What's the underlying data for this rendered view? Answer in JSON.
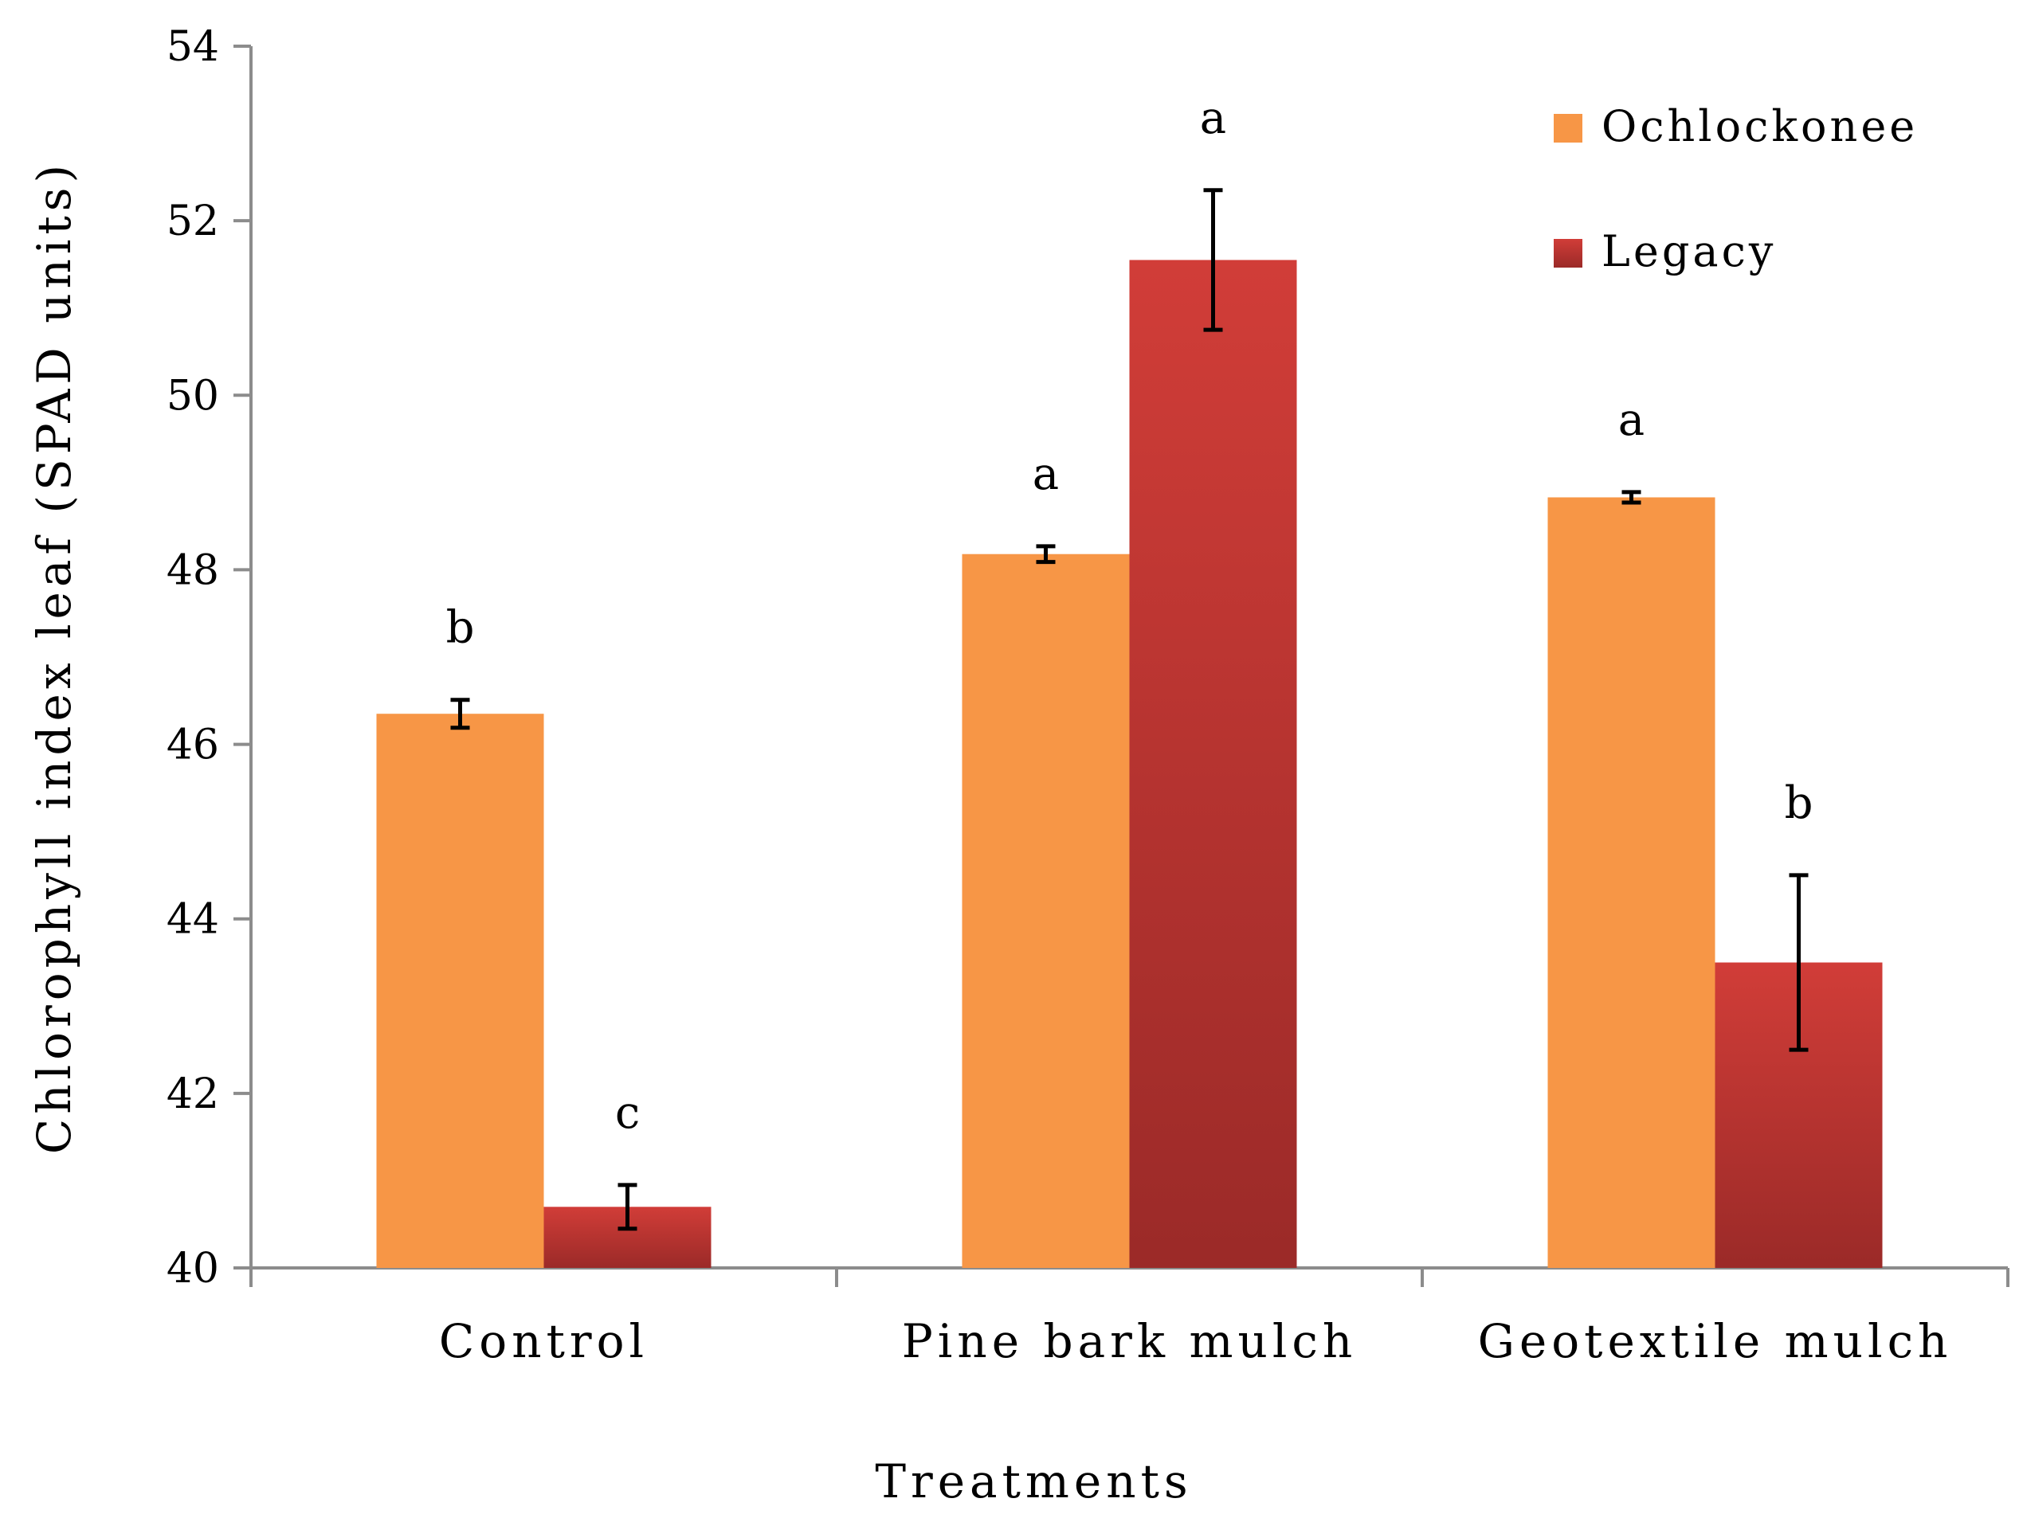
{
  "chart_data": {
    "type": "bar",
    "title": "",
    "xlabel": "Treatments",
    "ylabel": "Chlorophyll index leaf (SPAD units)",
    "ylim": [
      40,
      54
    ],
    "yticks": [
      40,
      42,
      44,
      46,
      48,
      50,
      52,
      54
    ],
    "categories": [
      "Control",
      "Pine bark mulch",
      "Geotextile mulch"
    ],
    "series": [
      {
        "name": "Ochlockonee",
        "color": "#f79646",
        "values": [
          46.35,
          48.18,
          48.83
        ],
        "errors": [
          0.16,
          0.09,
          0.06
        ],
        "significance": [
          "b",
          "a",
          "a"
        ]
      },
      {
        "name": "Legacy",
        "color": "#c0392b",
        "values": [
          40.7,
          51.55,
          43.5
        ],
        "errors": [
          0.25,
          0.8,
          1.0
        ],
        "significance": [
          "c",
          "a",
          "b"
        ]
      }
    ],
    "legend_position": "top-right",
    "grid": false
  }
}
